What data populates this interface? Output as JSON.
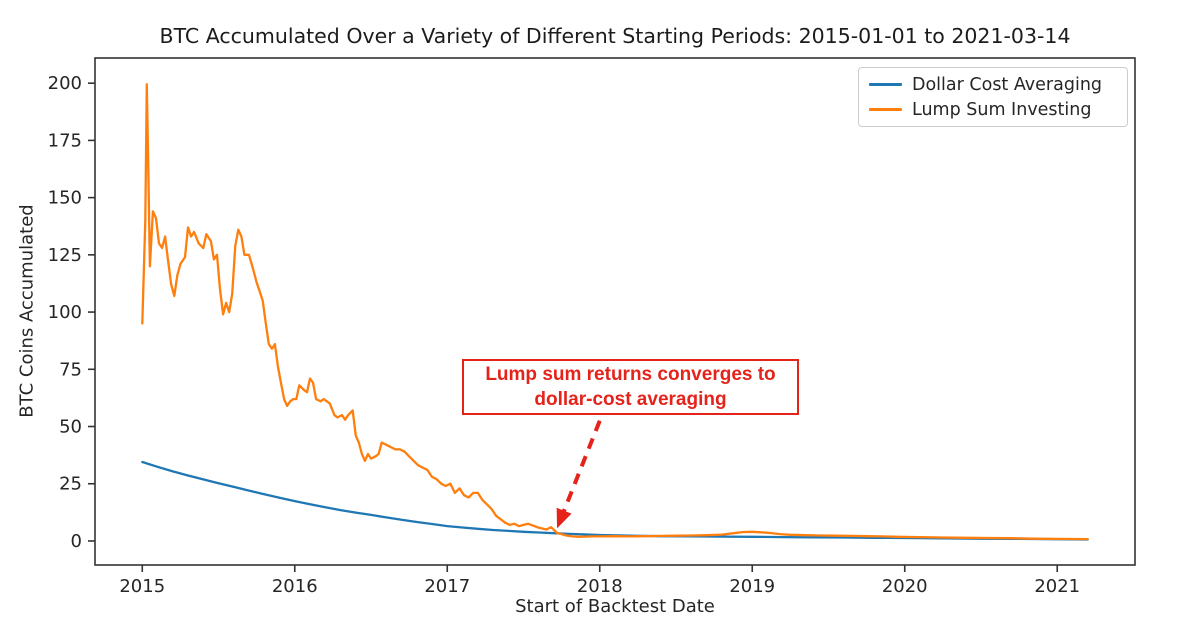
{
  "chart_data": {
    "type": "line",
    "title": "BTC Accumulated Over a Variety of Different Starting Periods: 2015-01-01 to 2021-03-14",
    "xlabel": "Start of Backtest Date",
    "ylabel": "BTC Coins Accumulated",
    "xlim": [
      2014.69,
      2021.51
    ],
    "ylim": [
      -10.5,
      211
    ],
    "x_ticks": [
      2015,
      2016,
      2017,
      2018,
      2019,
      2020,
      2021
    ],
    "x_tick_labels": [
      "2015",
      "2016",
      "2017",
      "2018",
      "2019",
      "2020",
      "2021"
    ],
    "y_ticks": [
      0,
      25,
      50,
      75,
      100,
      125,
      150,
      175,
      200
    ],
    "y_tick_labels": [
      "0",
      "25",
      "50",
      "75",
      "100",
      "125",
      "150",
      "175",
      "200"
    ],
    "grid": false,
    "legend_position": "upper right",
    "axis_color": "#333333",
    "tick_text_color": "#262626",
    "series": [
      {
        "name": "Dollar Cost Averaging",
        "color": "#1f77b4",
        "x": [
          2015.0,
          2015.1,
          2015.2,
          2015.3,
          2015.4,
          2015.5,
          2015.6,
          2015.7,
          2015.8,
          2015.9,
          2016.0,
          2016.1,
          2016.2,
          2016.3,
          2016.4,
          2016.5,
          2016.6,
          2016.7,
          2016.8,
          2016.9,
          2017.0,
          2017.1,
          2017.2,
          2017.3,
          2017.4,
          2017.5,
          2017.6,
          2017.7,
          2017.8,
          2017.9,
          2018.0,
          2018.2,
          2018.4,
          2018.6,
          2018.8,
          2019.0,
          2019.2,
          2019.4,
          2019.6,
          2019.8,
          2020.0,
          2020.25,
          2020.5,
          2020.75,
          2021.0,
          2021.2
        ],
        "y": [
          34.5,
          32.4,
          30.4,
          28.6,
          26.9,
          25.2,
          23.6,
          22.0,
          20.4,
          18.9,
          17.4,
          16.0,
          14.7,
          13.5,
          12.4,
          11.4,
          10.3,
          9.3,
          8.3,
          7.4,
          6.5,
          5.9,
          5.3,
          4.8,
          4.4,
          4.0,
          3.7,
          3.4,
          3.1,
          2.85,
          2.6,
          2.3,
          2.1,
          2.0,
          1.9,
          1.8,
          1.7,
          1.6,
          1.5,
          1.4,
          1.3,
          1.15,
          1.0,
          0.9,
          0.75,
          0.65
        ]
      },
      {
        "name": "Lump Sum Investing",
        "color": "#ff7f0e",
        "x": [
          2015.0,
          2015.02,
          2015.03,
          2015.04,
          2015.05,
          2015.07,
          2015.09,
          2015.11,
          2015.13,
          2015.15,
          2015.17,
          2015.19,
          2015.21,
          2015.23,
          2015.25,
          2015.28,
          2015.3,
          2015.32,
          2015.34,
          2015.37,
          2015.4,
          2015.42,
          2015.45,
          2015.47,
          2015.49,
          2015.51,
          2015.53,
          2015.55,
          2015.57,
          2015.59,
          2015.61,
          2015.63,
          2015.65,
          2015.67,
          2015.7,
          2015.73,
          2015.75,
          2015.77,
          2015.79,
          2015.81,
          2015.83,
          2015.85,
          2015.87,
          2015.89,
          2015.91,
          2015.93,
          2015.95,
          2015.97,
          2015.99,
          2016.01,
          2016.03,
          2016.06,
          2016.08,
          2016.1,
          2016.12,
          2016.14,
          2016.17,
          2016.19,
          2016.21,
          2016.23,
          2016.26,
          2016.28,
          2016.31,
          2016.33,
          2016.35,
          2016.38,
          2016.4,
          2016.42,
          2016.44,
          2016.46,
          2016.48,
          2016.5,
          2016.53,
          2016.55,
          2016.57,
          2016.6,
          2016.63,
          2016.66,
          2016.69,
          2016.72,
          2016.75,
          2016.78,
          2016.81,
          2016.84,
          2016.87,
          2016.9,
          2016.93,
          2016.96,
          2016.99,
          2017.02,
          2017.05,
          2017.08,
          2017.11,
          2017.14,
          2017.17,
          2017.2,
          2017.23,
          2017.26,
          2017.29,
          2017.32,
          2017.35,
          2017.38,
          2017.41,
          2017.44,
          2017.47,
          2017.5,
          2017.53,
          2017.56,
          2017.59,
          2017.62,
          2017.65,
          2017.68,
          2017.7,
          2017.72,
          2017.75,
          2017.78,
          2017.82,
          2017.86,
          2017.9,
          2017.95,
          2018.0,
          2018.1,
          2018.2,
          2018.3,
          2018.4,
          2018.5,
          2018.6,
          2018.7,
          2018.8,
          2018.88,
          2018.94,
          2019.0,
          2019.06,
          2019.12,
          2019.18,
          2019.25,
          2019.35,
          2019.45,
          2019.55,
          2019.65,
          2019.75,
          2019.85,
          2019.95,
          2020.1,
          2020.25,
          2020.4,
          2020.55,
          2020.7,
          2020.85,
          2021.0,
          2021.1,
          2021.2
        ],
        "y": [
          95,
          140,
          199.5,
          160,
          120,
          144,
          141,
          130,
          128,
          133,
          122,
          112,
          107,
          116,
          121,
          124,
          137,
          133,
          135,
          130,
          128,
          134,
          131,
          123,
          125,
          110,
          99,
          104,
          100,
          108,
          129,
          136,
          133,
          125,
          125,
          118,
          113,
          109,
          105,
          95,
          86,
          84,
          86,
          76,
          69,
          62,
          59,
          61,
          62,
          62,
          68,
          66,
          65,
          71,
          69,
          62,
          61,
          62,
          61,
          60,
          55,
          54,
          55,
          53,
          55,
          57,
          46,
          43,
          38,
          35,
          38,
          36,
          37,
          38,
          43,
          42,
          41,
          40,
          40,
          39,
          37,
          35,
          33,
          32,
          31,
          28,
          27,
          25,
          24,
          25,
          21,
          23,
          20,
          19,
          21,
          21,
          18,
          16,
          14,
          11,
          9.5,
          8,
          7,
          7.5,
          6.5,
          7,
          7.5,
          6.8,
          6,
          5.5,
          5,
          6,
          4.8,
          3.5,
          3,
          2.4,
          2,
          1.8,
          1.9,
          2,
          2,
          2.1,
          2,
          2.1,
          2.2,
          2.3,
          2.4,
          2.5,
          2.8,
          3.4,
          3.9,
          4,
          3.8,
          3.5,
          3,
          2.7,
          2.5,
          2.4,
          2.3,
          2.2,
          2.1,
          2,
          1.8,
          1.7,
          1.5,
          1.4,
          1.3,
          1.2,
          1,
          0.9,
          0.85,
          0.8
        ]
      }
    ],
    "annotation": {
      "line1": "Lump sum returns converges to",
      "line2": "dollar-cost averaging",
      "color": "#e5231b",
      "arrow": {
        "from_x": 2018.0,
        "from_y": 52.5,
        "to_x": 2017.72,
        "to_y": 5.5
      }
    }
  }
}
